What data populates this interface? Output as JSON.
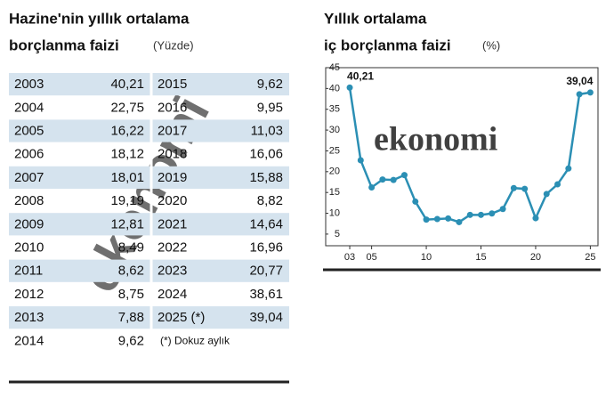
{
  "table": {
    "title": "Hazine'nin yıllık ortalama",
    "subtitle": "borçlanma faizi",
    "unit": "(Yüzde)",
    "watermark": "ekonomi",
    "left": [
      [
        "2003",
        "40,21"
      ],
      [
        "2004",
        "22,75"
      ],
      [
        "2005",
        "16,22"
      ],
      [
        "2006",
        "18,12"
      ],
      [
        "2007",
        "18,01"
      ],
      [
        "2008",
        "19,19"
      ],
      [
        "2009",
        "12,81"
      ],
      [
        "2010",
        "8,49"
      ],
      [
        "2011",
        "8,62"
      ],
      [
        "2012",
        "8,75"
      ],
      [
        "2013",
        "7,88"
      ],
      [
        "2014",
        "9,62"
      ]
    ],
    "right": [
      [
        "2015",
        "9,62"
      ],
      [
        "2016",
        "9,95"
      ],
      [
        "2017",
        "11,03"
      ],
      [
        "2018",
        "16,06"
      ],
      [
        "2019",
        "15,88"
      ],
      [
        "2020",
        "8,82"
      ],
      [
        "2021",
        "14,64"
      ],
      [
        "2022",
        "16,96"
      ],
      [
        "2023",
        "20,77"
      ],
      [
        "2024",
        "38,61"
      ],
      [
        "2025 (*)",
        "39,04"
      ]
    ],
    "note": "(*) Dokuz aylık"
  },
  "chart_data": {
    "type": "line",
    "title": "Yıllık ortalama",
    "subtitle": "iç borçlanma faizi",
    "unit": "(%)",
    "watermark": "ekonomi",
    "x": [
      3,
      4,
      5,
      6,
      7,
      8,
      9,
      10,
      11,
      12,
      13,
      14,
      15,
      16,
      17,
      18,
      19,
      20,
      21,
      22,
      23,
      24,
      25
    ],
    "values": [
      40.21,
      22.75,
      16.22,
      18.12,
      18.01,
      19.19,
      12.81,
      8.49,
      8.62,
      8.75,
      7.88,
      9.62,
      9.62,
      9.95,
      11.03,
      16.06,
      15.88,
      8.82,
      14.64,
      16.96,
      20.77,
      38.61,
      39.04
    ],
    "value_labels": [
      "40,21",
      null,
      null,
      null,
      null,
      null,
      null,
      null,
      null,
      null,
      null,
      null,
      null,
      null,
      null,
      null,
      null,
      null,
      null,
      null,
      null,
      null,
      "39,04"
    ],
    "color": "#2b8fb4",
    "xlim": [
      0.8,
      25.7
    ],
    "xticks": [
      {
        "value": 3,
        "label": "03"
      },
      {
        "value": 5,
        "label": "05"
      },
      10,
      15,
      20,
      25
    ],
    "ylim": [
      2.2,
      45
    ],
    "yticks": [
      5,
      10,
      15,
      20,
      25,
      30,
      35,
      40,
      45
    ],
    "grid": false
  }
}
